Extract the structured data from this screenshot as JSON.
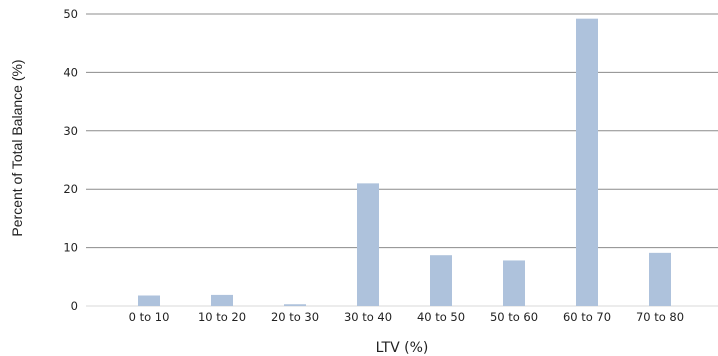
{
  "chart_data": {
    "type": "bar",
    "categories": [
      "0 to 10",
      "10 to 20",
      "20 to 30",
      "30 to 40",
      "40 to 50",
      "50 to 60",
      "60 to 70",
      "70 to 80"
    ],
    "values": [
      1.8,
      1.9,
      0.3,
      21.0,
      8.7,
      7.8,
      49.2,
      9.1
    ],
    "xlabel": "LTV (%)",
    "ylabel": "Percent of Total Balance (%)",
    "ylim": [
      0,
      50
    ],
    "yticks": [
      0,
      10,
      20,
      30,
      40,
      50
    ],
    "grid": true,
    "bar_color": "#aec2dc",
    "legend": "none"
  }
}
